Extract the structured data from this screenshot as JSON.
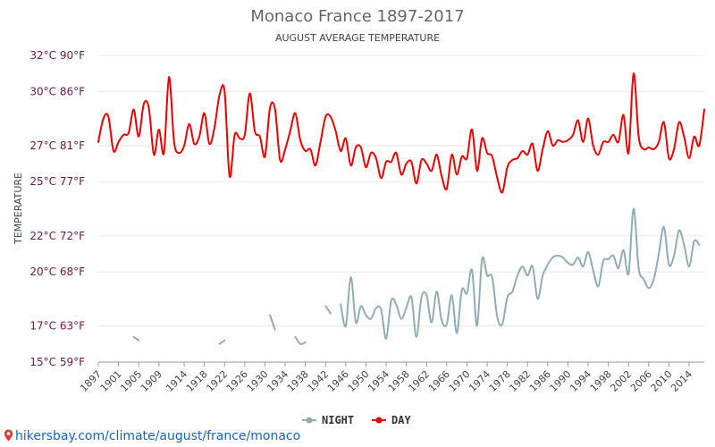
{
  "chart_data": {
    "type": "line",
    "title": "Monaco France 1897-2017",
    "subtitle": "AUGUST AVERAGE TEMPERATURE",
    "ylabel": "TEMPERATURE",
    "y_unit": "°C",
    "ylim": [
      15,
      32
    ],
    "y_ticks": [
      {
        "value": 15,
        "label": "15°C 59°F"
      },
      {
        "value": 17,
        "label": "17°C 63°F"
      },
      {
        "value": 20,
        "label": "20°C 68°F"
      },
      {
        "value": 22,
        "label": "22°C 72°F"
      },
      {
        "value": 25,
        "label": "25°C 77°F"
      },
      {
        "value": 27,
        "label": "27°C 81°F"
      },
      {
        "value": 30,
        "label": "30°C 86°F"
      },
      {
        "value": 32,
        "label": "32°C 90°F"
      }
    ],
    "xlim": [
      1897,
      2017
    ],
    "x_ticks": [
      1897,
      1901,
      1905,
      1909,
      1914,
      1918,
      1922,
      1926,
      1930,
      1934,
      1938,
      1942,
      1946,
      1950,
      1954,
      1958,
      1962,
      1966,
      1970,
      1974,
      1978,
      1982,
      1986,
      1990,
      1994,
      1998,
      2002,
      2006,
      2010,
      2014
    ],
    "grid": true,
    "legend_position": "bottom-center",
    "series": [
      {
        "name": "NIGHT",
        "color": "#90adb6",
        "points": [
          [
            1904,
            16.4
          ],
          [
            1905,
            16.2
          ],
          [
            1921,
            16.0
          ],
          [
            1922,
            16.2
          ],
          [
            1931,
            17.6
          ],
          [
            1932,
            16.8
          ],
          [
            1936,
            16.4
          ],
          [
            1937,
            16.0
          ],
          [
            1938,
            16.1
          ],
          [
            1942,
            18.1
          ],
          [
            1943,
            17.7
          ],
          [
            1945,
            18.2
          ],
          [
            1946,
            17.0
          ],
          [
            1947,
            19.7
          ],
          [
            1948,
            17.2
          ],
          [
            1949,
            18.1
          ],
          [
            1950,
            17.6
          ],
          [
            1951,
            17.4
          ],
          [
            1952,
            18.0
          ],
          [
            1953,
            17.9
          ],
          [
            1954,
            16.3
          ],
          [
            1955,
            18.4
          ],
          [
            1956,
            18.2
          ],
          [
            1957,
            17.4
          ],
          [
            1958,
            18.0
          ],
          [
            1959,
            18.6
          ],
          [
            1960,
            16.4
          ],
          [
            1961,
            18.6
          ],
          [
            1962,
            18.7
          ],
          [
            1963,
            17.2
          ],
          [
            1964,
            18.9
          ],
          [
            1965,
            17.3
          ],
          [
            1966,
            17.1
          ],
          [
            1967,
            18.7
          ],
          [
            1968,
            16.6
          ],
          [
            1969,
            19.0
          ],
          [
            1970,
            18.8
          ],
          [
            1971,
            20.1
          ],
          [
            1972,
            17.0
          ],
          [
            1973,
            20.7
          ],
          [
            1974,
            19.8
          ],
          [
            1975,
            19.7
          ],
          [
            1976,
            17.5
          ],
          [
            1977,
            17.1
          ],
          [
            1978,
            18.6
          ],
          [
            1979,
            18.9
          ],
          [
            1980,
            19.8
          ],
          [
            1981,
            20.3
          ],
          [
            1982,
            19.8
          ],
          [
            1983,
            20.3
          ],
          [
            1984,
            18.5
          ],
          [
            1985,
            19.8
          ],
          [
            1986,
            20.4
          ],
          [
            1987,
            20.8
          ],
          [
            1988,
            20.9
          ],
          [
            1989,
            20.8
          ],
          [
            1990,
            20.5
          ],
          [
            1991,
            20.4
          ],
          [
            1992,
            20.8
          ],
          [
            1993,
            20.3
          ],
          [
            1994,
            21.1
          ],
          [
            1995,
            20.1
          ],
          [
            1996,
            19.2
          ],
          [
            1997,
            20.6
          ],
          [
            1998,
            20.7
          ],
          [
            1999,
            20.9
          ],
          [
            2000,
            20.2
          ],
          [
            2001,
            21.2
          ],
          [
            2002,
            19.9
          ],
          [
            2003,
            23.5
          ],
          [
            2004,
            20.2
          ],
          [
            2005,
            19.6
          ],
          [
            2006,
            19.1
          ],
          [
            2007,
            19.6
          ],
          [
            2008,
            21.0
          ],
          [
            2009,
            22.5
          ],
          [
            2010,
            20.4
          ],
          [
            2011,
            20.9
          ],
          [
            2012,
            22.3
          ],
          [
            2013,
            21.5
          ],
          [
            2014,
            20.3
          ],
          [
            2015,
            21.7
          ],
          [
            2016,
            21.5
          ]
        ]
      },
      {
        "name": "DAY",
        "color": "#ee0000",
        "points": [
          [
            1897,
            27.2
          ],
          [
            1898,
            28.5
          ],
          [
            1899,
            28.6
          ],
          [
            1900,
            26.7
          ],
          [
            1901,
            27.2
          ],
          [
            1902,
            27.6
          ],
          [
            1903,
            27.7
          ],
          [
            1904,
            29.0
          ],
          [
            1905,
            27.5
          ],
          [
            1906,
            29.3
          ],
          [
            1907,
            29.1
          ],
          [
            1908,
            26.5
          ],
          [
            1909,
            27.9
          ],
          [
            1910,
            26.6
          ],
          [
            1911,
            30.8
          ],
          [
            1912,
            27.2
          ],
          [
            1913,
            26.6
          ],
          [
            1914,
            27.0
          ],
          [
            1915,
            28.2
          ],
          [
            1916,
            27.1
          ],
          [
            1917,
            27.5
          ],
          [
            1918,
            28.8
          ],
          [
            1919,
            27.1
          ],
          [
            1920,
            28.0
          ],
          [
            1921,
            29.8
          ],
          [
            1922,
            30.0
          ],
          [
            1923,
            25.3
          ],
          [
            1924,
            27.6
          ],
          [
            1925,
            27.4
          ],
          [
            1926,
            27.6
          ],
          [
            1927,
            29.9
          ],
          [
            1928,
            27.8
          ],
          [
            1929,
            27.5
          ],
          [
            1930,
            26.4
          ],
          [
            1931,
            29.1
          ],
          [
            1932,
            29.0
          ],
          [
            1933,
            26.2
          ],
          [
            1934,
            26.8
          ],
          [
            1935,
            27.8
          ],
          [
            1936,
            28.8
          ],
          [
            1937,
            27.3
          ],
          [
            1938,
            26.7
          ],
          [
            1939,
            26.8
          ],
          [
            1940,
            25.9
          ],
          [
            1941,
            27.2
          ],
          [
            1942,
            28.6
          ],
          [
            1943,
            28.6
          ],
          [
            1944,
            27.8
          ],
          [
            1945,
            26.7
          ],
          [
            1946,
            27.4
          ],
          [
            1947,
            25.9
          ],
          [
            1948,
            26.9
          ],
          [
            1949,
            26.9
          ],
          [
            1950,
            25.8
          ],
          [
            1951,
            26.6
          ],
          [
            1952,
            26.3
          ],
          [
            1953,
            25.2
          ],
          [
            1954,
            26.1
          ],
          [
            1955,
            26.1
          ],
          [
            1956,
            26.6
          ],
          [
            1957,
            25.4
          ],
          [
            1958,
            26.0
          ],
          [
            1959,
            26.1
          ],
          [
            1960,
            24.9
          ],
          [
            1961,
            26.2
          ],
          [
            1962,
            26.0
          ],
          [
            1963,
            25.6
          ],
          [
            1964,
            26.5
          ],
          [
            1965,
            25.3
          ],
          [
            1966,
            24.6
          ],
          [
            1967,
            26.5
          ],
          [
            1968,
            25.4
          ],
          [
            1969,
            26.4
          ],
          [
            1970,
            26.3
          ],
          [
            1971,
            27.9
          ],
          [
            1972,
            25.6
          ],
          [
            1973,
            27.4
          ],
          [
            1974,
            26.6
          ],
          [
            1975,
            26.4
          ],
          [
            1976,
            25.2
          ],
          [
            1977,
            24.4
          ],
          [
            1978,
            25.8
          ],
          [
            1979,
            26.2
          ],
          [
            1980,
            26.3
          ],
          [
            1981,
            26.7
          ],
          [
            1982,
            26.5
          ],
          [
            1983,
            27.1
          ],
          [
            1984,
            25.6
          ],
          [
            1985,
            26.8
          ],
          [
            1986,
            27.8
          ],
          [
            1987,
            27.0
          ],
          [
            1988,
            27.3
          ],
          [
            1989,
            27.2
          ],
          [
            1990,
            27.3
          ],
          [
            1991,
            27.6
          ],
          [
            1992,
            28.4
          ],
          [
            1993,
            27.2
          ],
          [
            1994,
            28.5
          ],
          [
            1995,
            27.0
          ],
          [
            1996,
            26.5
          ],
          [
            1997,
            27.2
          ],
          [
            1998,
            27.2
          ],
          [
            1999,
            27.6
          ],
          [
            2000,
            27.2
          ],
          [
            2001,
            28.7
          ],
          [
            2002,
            26.6
          ],
          [
            2003,
            31.0
          ],
          [
            2004,
            27.5
          ],
          [
            2005,
            26.8
          ],
          [
            2006,
            26.9
          ],
          [
            2007,
            26.8
          ],
          [
            2008,
            27.2
          ],
          [
            2009,
            28.3
          ],
          [
            2010,
            26.3
          ],
          [
            2011,
            26.8
          ],
          [
            2012,
            28.3
          ],
          [
            2013,
            27.5
          ],
          [
            2014,
            26.3
          ],
          [
            2015,
            27.5
          ],
          [
            2016,
            27.0
          ],
          [
            2017,
            29.0
          ]
        ]
      }
    ]
  },
  "footer": {
    "url_text": "hikersbay.com/climate/august/france/monaco",
    "link_color": "#1565c0"
  }
}
